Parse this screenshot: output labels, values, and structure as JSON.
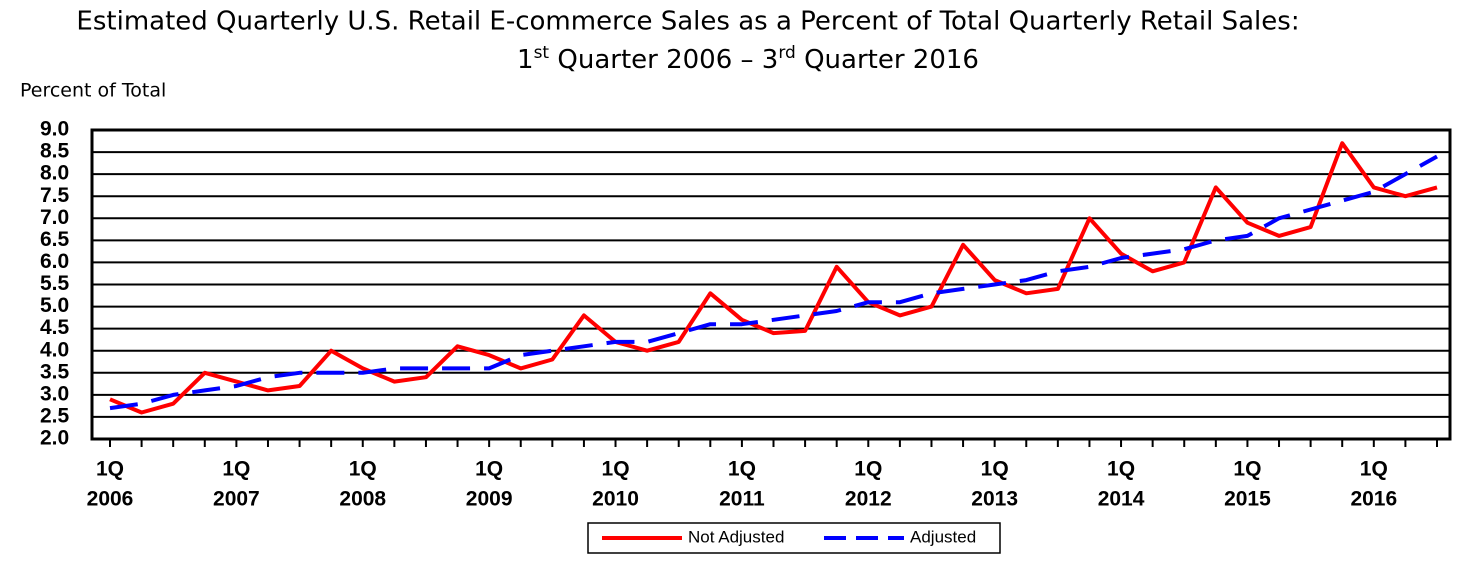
{
  "chart_data": {
    "type": "line",
    "title": "Estimated Quarterly U.S. Retail E-commerce Sales as a Percent of Total Quarterly Retail Sales:",
    "subtitle": [
      "1",
      "st",
      " Quarter 2006 – 3",
      "rd",
      " Quarter 2016"
    ],
    "y_label": "Percent of Total",
    "categories": [
      [
        "1Q",
        "2006"
      ],
      null,
      null,
      null,
      [
        "1Q",
        "2007"
      ],
      null,
      null,
      null,
      [
        "1Q",
        "2008"
      ],
      null,
      null,
      null,
      [
        "1Q",
        "2009"
      ],
      null,
      null,
      null,
      [
        "1Q",
        "2010"
      ],
      null,
      null,
      null,
      [
        "1Q",
        "2011"
      ],
      null,
      null,
      null,
      [
        "1Q",
        "2012"
      ],
      null,
      null,
      null,
      [
        "1Q",
        "2013"
      ],
      null,
      null,
      null,
      [
        "1Q",
        "2014"
      ],
      null,
      null,
      null,
      [
        "1Q",
        "2015"
      ],
      null,
      null,
      null,
      [
        "1Q",
        "2016"
      ],
      null,
      null
    ],
    "series": [
      {
        "name": "Not Adjusted",
        "color": "#ff0000",
        "dash": false,
        "values": [
          2.9,
          2.6,
          2.8,
          3.5,
          3.3,
          3.1,
          3.2,
          4.0,
          3.6,
          3.3,
          3.4,
          4.1,
          3.9,
          3.6,
          3.8,
          4.8,
          4.2,
          4.0,
          4.2,
          5.3,
          4.7,
          4.4,
          4.45,
          5.9,
          5.1,
          4.8,
          5.0,
          6.4,
          5.6,
          5.3,
          5.4,
          7.0,
          6.2,
          5.8,
          6.0,
          7.7,
          6.9,
          6.6,
          6.8,
          8.7,
          7.7,
          7.5,
          7.7
        ]
      },
      {
        "name": "Adjusted",
        "color": "#0000ff",
        "dash": true,
        "values": [
          2.7,
          2.8,
          3.0,
          3.1,
          3.2,
          3.4,
          3.5,
          3.5,
          3.5,
          3.6,
          3.6,
          3.6,
          3.6,
          3.9,
          4.0,
          4.1,
          4.2,
          4.2,
          4.4,
          4.6,
          4.6,
          4.7,
          4.8,
          4.9,
          5.1,
          5.1,
          5.3,
          5.4,
          5.5,
          5.6,
          5.8,
          5.9,
          6.1,
          6.2,
          6.3,
          6.5,
          6.6,
          7.0,
          7.2,
          7.4,
          7.6,
          8.0,
          8.4
        ]
      }
    ],
    "ylim": [
      2.0,
      9.0
    ],
    "yticks": [
      {
        "value": 2.0,
        "label": "2.0"
      },
      {
        "value": 2.5,
        "label": "2.5"
      },
      {
        "value": 3.0,
        "label": "3.0"
      },
      {
        "value": 3.5,
        "label": "3.5"
      },
      {
        "value": 4.0,
        "label": "4.0"
      },
      {
        "value": 4.5,
        "label": "4.5"
      },
      {
        "value": 5.0,
        "label": "5.0"
      },
      {
        "value": 5.5,
        "label": "5.5"
      },
      {
        "value": 6.0,
        "label": "6.0"
      },
      {
        "value": 6.5,
        "label": "6.5"
      },
      {
        "value": 7.0,
        "label": "7.0"
      },
      {
        "value": 7.5,
        "label": "7.5"
      },
      {
        "value": 8.0,
        "label": "8.0"
      },
      {
        "value": 8.5,
        "label": "8.5"
      },
      {
        "value": 9.0,
        "label": "9.0"
      }
    ],
    "grid": true
  }
}
